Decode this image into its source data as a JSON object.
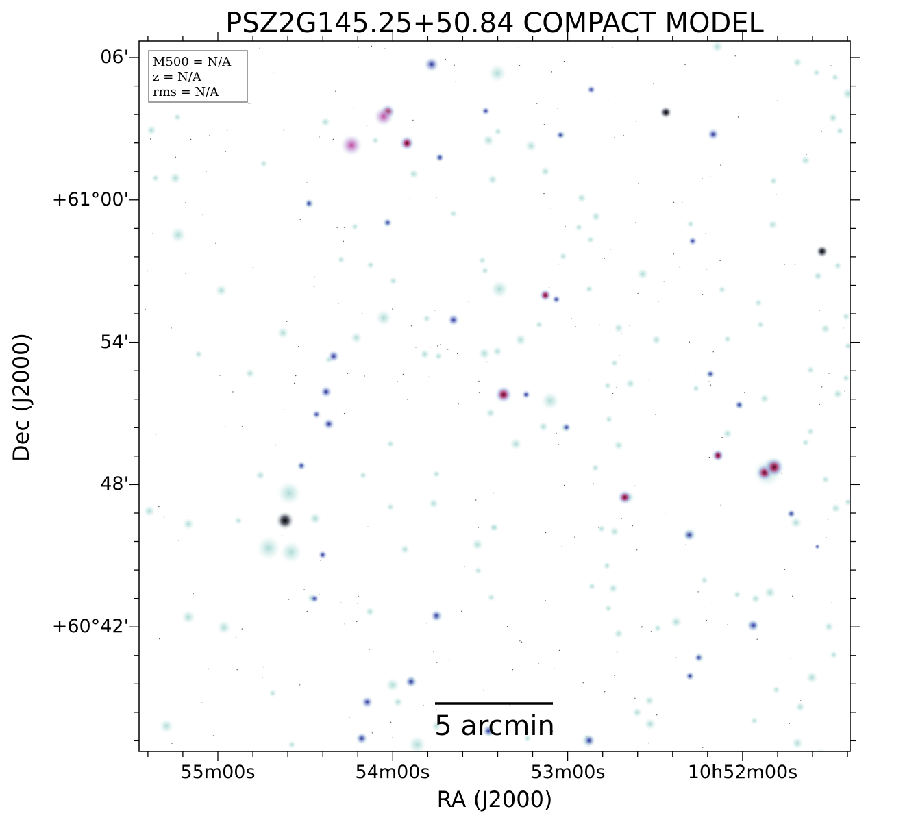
{
  "title": "PSZ2G145.25+50.84 COMPACT MODEL",
  "info_box": {
    "mass": "M500 = N/A",
    "redshift": "z = N/A",
    "rms": "rms = N/A"
  },
  "axes": {
    "x_label": "RA (J2000)",
    "y_label": "Dec (J2000)",
    "x_ticks": [
      "55m00s",
      "54m00s",
      "53m00s",
      "10h52m00s"
    ],
    "y_ticks": [
      "06'",
      "+61°00'",
      "54'",
      "48'",
      "+60°42'"
    ]
  },
  "scale_bar": {
    "label": "5 arcmin"
  },
  "colors": {
    "faint_source": "#bfe3df",
    "medium_source": "#3f4fa0",
    "bright_source": "#b0306a",
    "saturated": "#111111",
    "frame": "#000000",
    "info_border": "#808080"
  }
}
